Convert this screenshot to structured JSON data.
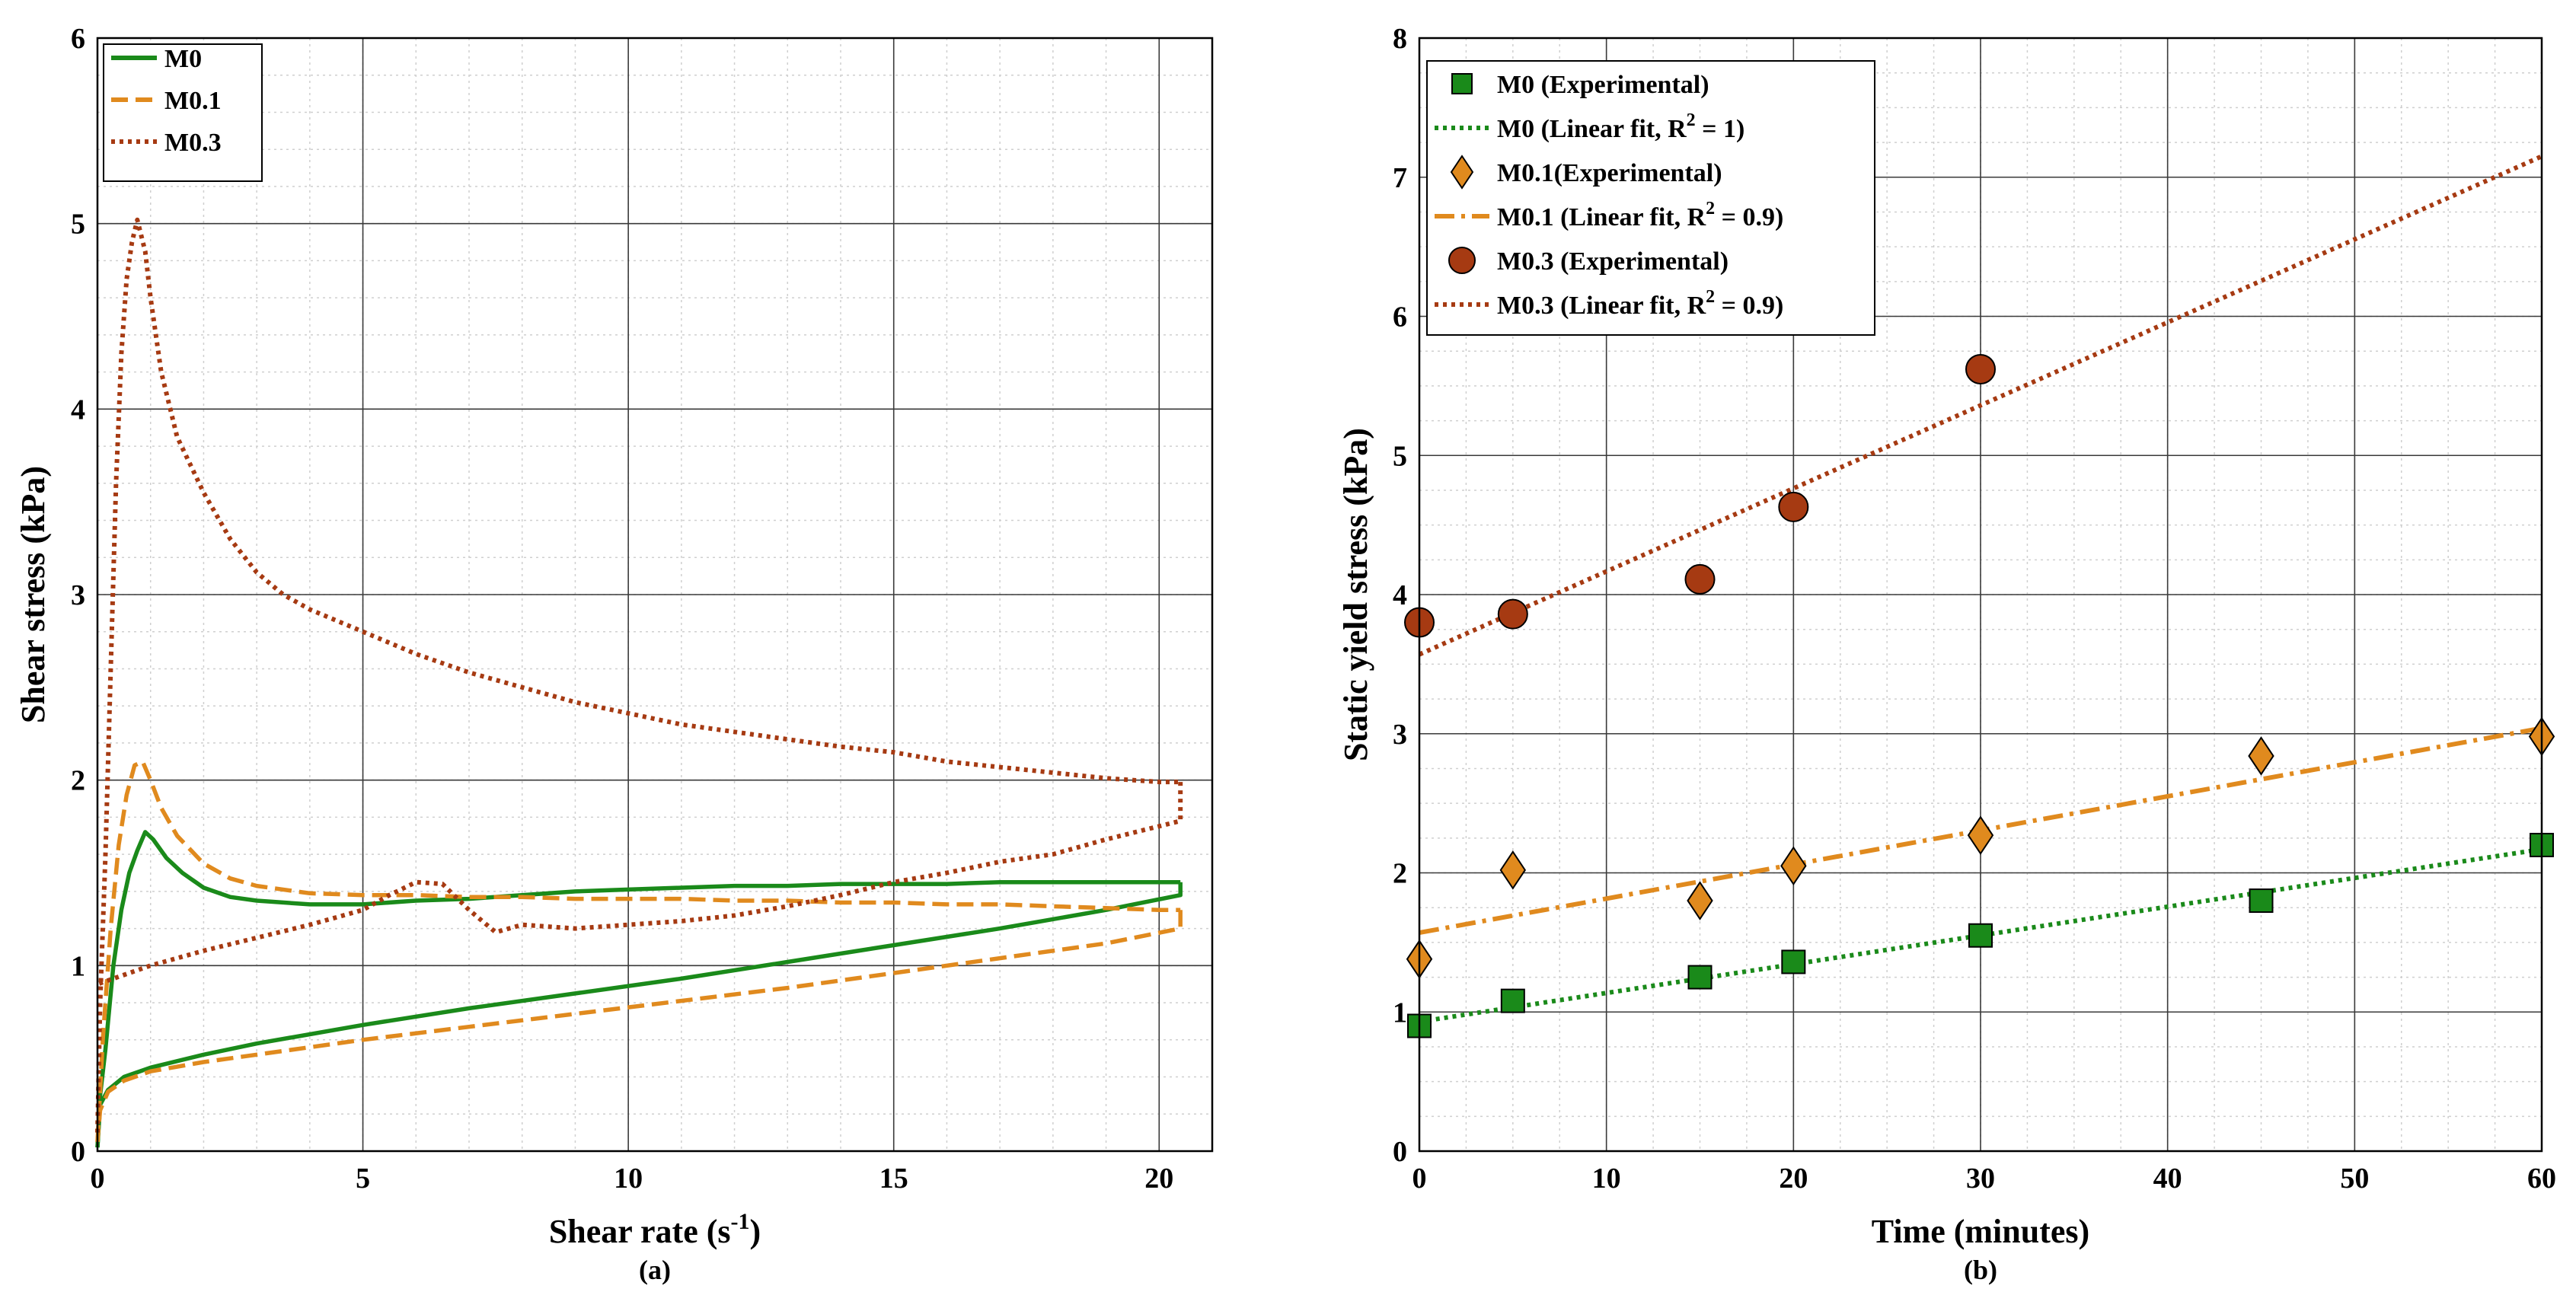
{
  "chart_data": [
    {
      "type": "line",
      "panel_label": "(a)",
      "xlabel": "Shear rate (s",
      "xlabel_sup": "-1",
      "xlabel_close": ")",
      "ylabel": "Shear stress (kPa)",
      "xlim": [
        0,
        21
      ],
      "ylim": [
        0,
        6
      ],
      "xticks": [
        0,
        5,
        10,
        15,
        20
      ],
      "yticks": [
        0,
        1,
        2,
        3,
        4,
        5,
        6
      ],
      "grid": true,
      "legend_position": "top-left",
      "series": [
        {
          "name": "M0",
          "color": "#1a8a1a",
          "style": "solid",
          "up": [
            [
              0,
              0.02
            ],
            [
              0.05,
              0.3
            ],
            [
              0.15,
              0.55
            ],
            [
              0.3,
              1.0
            ],
            [
              0.45,
              1.3
            ],
            [
              0.6,
              1.5
            ],
            [
              0.75,
              1.62
            ],
            [
              0.9,
              1.72
            ],
            [
              1.05,
              1.68
            ],
            [
              1.3,
              1.58
            ],
            [
              1.6,
              1.5
            ],
            [
              2.0,
              1.42
            ],
            [
              2.5,
              1.37
            ],
            [
              3,
              1.35
            ],
            [
              4,
              1.33
            ],
            [
              5,
              1.33
            ],
            [
              6,
              1.35
            ],
            [
              7,
              1.36
            ],
            [
              8,
              1.38
            ],
            [
              9,
              1.4
            ],
            [
              10,
              1.41
            ],
            [
              11,
              1.42
            ],
            [
              12,
              1.43
            ],
            [
              13,
              1.43
            ],
            [
              14,
              1.44
            ],
            [
              15,
              1.44
            ],
            [
              16,
              1.44
            ],
            [
              17,
              1.45
            ],
            [
              18,
              1.45
            ],
            [
              19,
              1.45
            ],
            [
              20,
              1.45
            ],
            [
              20.4,
              1.45
            ]
          ],
          "down": [
            [
              20.4,
              1.45
            ],
            [
              20.4,
              1.38
            ],
            [
              19,
              1.3
            ],
            [
              17,
              1.2
            ],
            [
              15,
              1.11
            ],
            [
              13,
              1.02
            ],
            [
              11,
              0.93
            ],
            [
              9,
              0.85
            ],
            [
              7,
              0.77
            ],
            [
              5,
              0.68
            ],
            [
              3,
              0.58
            ],
            [
              2,
              0.52
            ],
            [
              1,
              0.45
            ],
            [
              0.5,
              0.4
            ],
            [
              0.2,
              0.33
            ],
            [
              0.05,
              0.25
            ],
            [
              0,
              0.02
            ]
          ]
        },
        {
          "name": "M0.1",
          "color": "#e08a1e",
          "style": "dashed",
          "up": [
            [
              0,
              0.05
            ],
            [
              0.1,
              0.6
            ],
            [
              0.25,
              1.2
            ],
            [
              0.4,
              1.65
            ],
            [
              0.55,
              1.92
            ],
            [
              0.7,
              2.08
            ],
            [
              0.85,
              2.1
            ],
            [
              1.0,
              2.0
            ],
            [
              1.2,
              1.85
            ],
            [
              1.5,
              1.7
            ],
            [
              2,
              1.55
            ],
            [
              2.5,
              1.47
            ],
            [
              3,
              1.43
            ],
            [
              4,
              1.39
            ],
            [
              5,
              1.38
            ],
            [
              6,
              1.38
            ],
            [
              7,
              1.37
            ],
            [
              8,
              1.37
            ],
            [
              9,
              1.36
            ],
            [
              10,
              1.36
            ],
            [
              11,
              1.36
            ],
            [
              12,
              1.35
            ],
            [
              13,
              1.35
            ],
            [
              14,
              1.34
            ],
            [
              15,
              1.34
            ],
            [
              16,
              1.33
            ],
            [
              17,
              1.33
            ],
            [
              18,
              1.32
            ],
            [
              19,
              1.31
            ],
            [
              20,
              1.3
            ],
            [
              20.4,
              1.3
            ]
          ],
          "down": [
            [
              20.4,
              1.3
            ],
            [
              20.4,
              1.2
            ],
            [
              19,
              1.12
            ],
            [
              17,
              1.04
            ],
            [
              15,
              0.96
            ],
            [
              13,
              0.88
            ],
            [
              11,
              0.81
            ],
            [
              9,
              0.74
            ],
            [
              7,
              0.67
            ],
            [
              5,
              0.6
            ],
            [
              3,
              0.52
            ],
            [
              2,
              0.48
            ],
            [
              1,
              0.43
            ],
            [
              0.5,
              0.38
            ],
            [
              0.2,
              0.32
            ],
            [
              0.05,
              0.22
            ],
            [
              0,
              0.05
            ]
          ]
        },
        {
          "name": "M0.3",
          "color": "#a63a12",
          "style": "dotted",
          "up": [
            [
              0,
              0.1
            ],
            [
              0.05,
              0.8
            ],
            [
              0.15,
              1.6
            ],
            [
              0.25,
              2.6
            ],
            [
              0.35,
              3.6
            ],
            [
              0.45,
              4.3
            ],
            [
              0.55,
              4.7
            ],
            [
              0.65,
              4.9
            ],
            [
              0.75,
              5.02
            ],
            [
              0.9,
              4.85
            ],
            [
              1.0,
              4.6
            ],
            [
              1.2,
              4.2
            ],
            [
              1.5,
              3.85
            ],
            [
              2,
              3.55
            ],
            [
              2.5,
              3.3
            ],
            [
              3,
              3.12
            ],
            [
              3.5,
              3.0
            ],
            [
              4,
              2.92
            ],
            [
              5,
              2.8
            ],
            [
              6,
              2.68
            ],
            [
              7,
              2.58
            ],
            [
              8,
              2.5
            ],
            [
              9,
              2.42
            ],
            [
              10,
              2.36
            ],
            [
              11,
              2.3
            ],
            [
              12,
              2.26
            ],
            [
              13,
              2.22
            ],
            [
              14,
              2.18
            ],
            [
              15,
              2.15
            ],
            [
              16,
              2.1
            ],
            [
              17,
              2.07
            ],
            [
              18,
              2.04
            ],
            [
              19,
              2.01
            ],
            [
              20,
              1.99
            ],
            [
              20.4,
              1.99
            ]
          ],
          "down": [
            [
              20.4,
              1.99
            ],
            [
              20.4,
              1.78
            ],
            [
              19,
              1.68
            ],
            [
              18,
              1.6
            ],
            [
              17,
              1.56
            ],
            [
              16,
              1.5
            ],
            [
              15,
              1.45
            ],
            [
              14,
              1.38
            ],
            [
              13,
              1.32
            ],
            [
              12,
              1.27
            ],
            [
              11,
              1.24
            ],
            [
              10,
              1.22
            ],
            [
              9,
              1.2
            ],
            [
              8,
              1.22
            ],
            [
              7.5,
              1.18
            ],
            [
              7,
              1.3
            ],
            [
              6.5,
              1.44
            ],
            [
              6,
              1.45
            ],
            [
              5.5,
              1.38
            ],
            [
              5,
              1.3
            ],
            [
              4,
              1.22
            ],
            [
              3,
              1.15
            ],
            [
              2,
              1.08
            ],
            [
              1,
              1.0
            ],
            [
              0.5,
              0.95
            ],
            [
              0.2,
              0.92
            ],
            [
              0,
              0.9
            ]
          ]
        }
      ]
    },
    {
      "type": "scatter",
      "panel_label": "(b)",
      "xlabel": "Time (minutes)",
      "ylabel": "Static yield stress (kPa)",
      "xlim": [
        0,
        60
      ],
      "ylim": [
        0,
        8
      ],
      "xticks": [
        0,
        10,
        20,
        30,
        40,
        50,
        60
      ],
      "yticks": [
        0,
        1,
        2,
        3,
        4,
        5,
        6,
        7,
        8
      ],
      "grid": true,
      "legend_position": "top-left",
      "series": [
        {
          "name": "M0 (Experimental)",
          "marker": "square",
          "color": "#1a8a1a",
          "x": [
            0,
            5,
            15,
            20,
            30,
            45,
            60
          ],
          "y": [
            0.9,
            1.08,
            1.25,
            1.36,
            1.55,
            1.8,
            2.2
          ]
        },
        {
          "name": "M0.1(Experimental)",
          "marker": "diamond",
          "color": "#e08a1e",
          "x": [
            0,
            5,
            15,
            20,
            30,
            45,
            60
          ],
          "y": [
            1.38,
            2.02,
            1.8,
            2.05,
            2.27,
            2.84,
            2.98
          ]
        },
        {
          "name": "M0.3 (Experimental)",
          "marker": "circle",
          "color": "#a63a12",
          "x": [
            0,
            5,
            15,
            20,
            30
          ],
          "y": [
            3.8,
            3.86,
            4.11,
            4.63,
            5.62
          ]
        }
      ],
      "fits": [
        {
          "name": "M0 (Linear fit, R",
          "r2": "2",
          "tail": " = 1)",
          "color": "#1a8a1a",
          "style": "dotted",
          "x": [
            0,
            60
          ],
          "y": [
            0.93,
            2.17
          ]
        },
        {
          "name": "M0.1 (Linear fit, R",
          "r2": "2",
          "tail": " = 0.9)",
          "color": "#e08a1e",
          "style": "dashdot",
          "x": [
            0,
            60
          ],
          "y": [
            1.57,
            3.04
          ]
        },
        {
          "name": "M0.3 (Linear fit, R",
          "r2": "2",
          "tail": " = 0.9)",
          "color": "#a63a12",
          "style": "dotted",
          "x": [
            0,
            60
          ],
          "y": [
            3.57,
            7.15
          ]
        }
      ]
    }
  ]
}
